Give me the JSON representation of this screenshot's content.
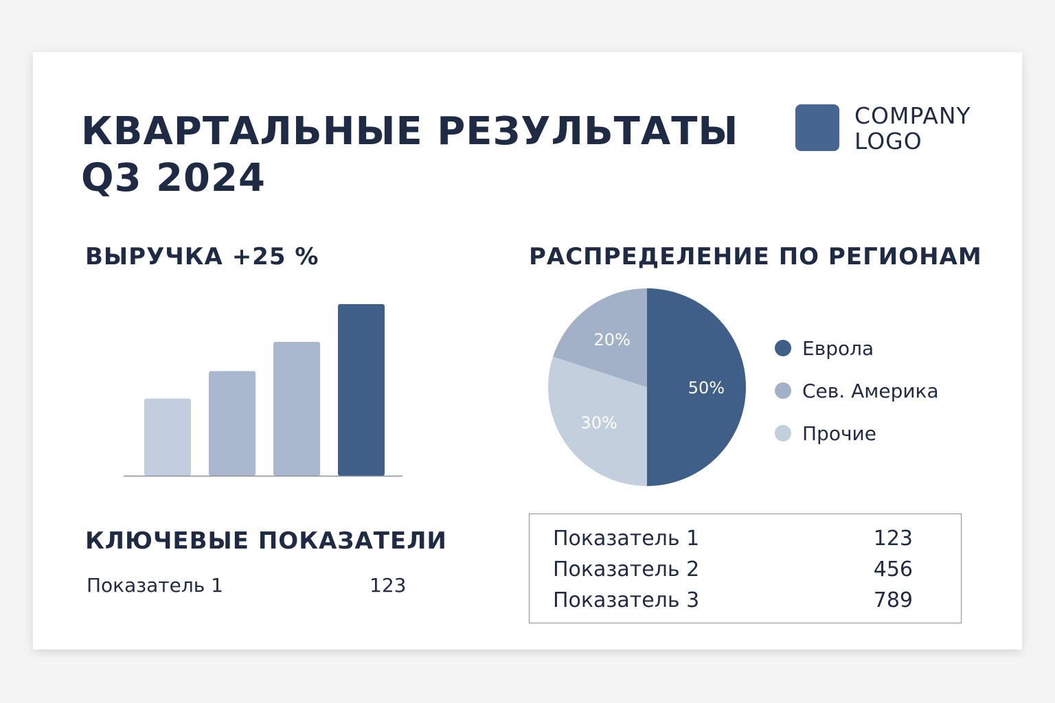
{
  "slide": {
    "title_line1": "КВАРТАЛЬНЫЕ РЕЗУЛЬТАТЫ",
    "title_line2": "Q3 2024",
    "logo_line1": "COMPANY",
    "logo_line2": "LOGO",
    "logo_color": "#466590"
  },
  "revenue": {
    "title": "ВЫРУЧКА +25 %"
  },
  "regions": {
    "title": "РАСПРЕДЕЛЕНИЕ ПО РЕГИОНАМ"
  },
  "key_metrics": {
    "title": "КЛЮЧЕВЫЕ ПОКАЗАТЕЛИ",
    "rows": [
      {
        "label": "Показатель 1",
        "value": "123"
      }
    ]
  },
  "metrics_table": {
    "rows": [
      {
        "label": "Показатель 1",
        "value": "123"
      },
      {
        "label": "Показатель 2",
        "value": "456"
      },
      {
        "label": "Показатель 3",
        "value": "789"
      }
    ]
  },
  "chart_data": [
    {
      "type": "bar",
      "categories": [
        "",
        "",
        "",
        ""
      ],
      "values": [
        45,
        61,
        78,
        100
      ],
      "colors": [
        "#c2cddd",
        "#a9b8cf",
        "#a9b8cf",
        "#3f5f88"
      ],
      "ylim": [
        0,
        100
      ],
      "grid": false,
      "title": "",
      "xlabel": "",
      "ylabel": ""
    },
    {
      "type": "pie",
      "series": [
        {
          "name": "Еврола",
          "value": 50,
          "label": "50%",
          "color": "#3f5f88"
        },
        {
          "name": "Сев. Америка",
          "value": 20,
          "label": "20%",
          "color": "#a2b1c8"
        },
        {
          "name": "Прочие",
          "value": 30,
          "label": "30%",
          "color": "#c4cfde"
        }
      ],
      "legend": "right"
    }
  ]
}
